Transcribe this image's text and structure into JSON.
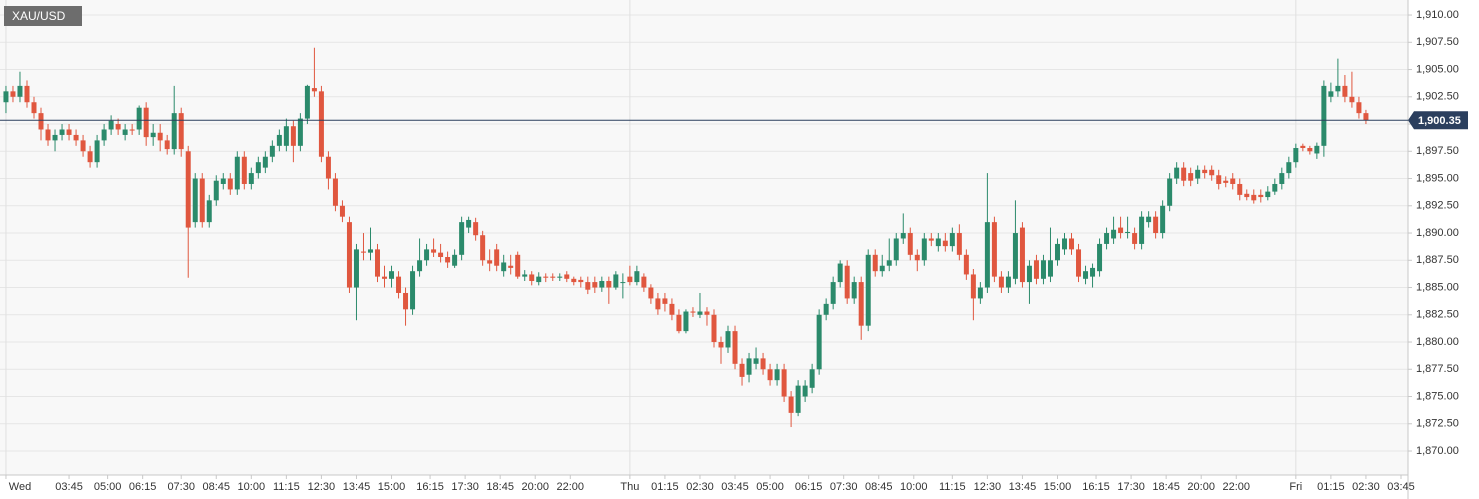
{
  "chart_data": {
    "type": "candlestick",
    "title": "XAU/USD",
    "up_color": "#2b8a6b",
    "down_color": "#e0573f",
    "grid": true,
    "last_price": {
      "value": 1900.35,
      "label": "1,900.35"
    },
    "last_price_color": "#2b3f5e",
    "xlim": [
      -0.85,
      200
    ],
    "xticks": [
      {
        "value": 0,
        "label": "Wed"
      },
      {
        "value": 9,
        "label": "03:45"
      },
      {
        "value": 14.5,
        "label": "05:00"
      },
      {
        "value": 19.5,
        "label": "06:15"
      },
      {
        "value": 25,
        "label": "07:30"
      },
      {
        "value": 30,
        "label": "08:45"
      },
      {
        "value": 35,
        "label": "10:00"
      },
      {
        "value": 40,
        "label": "11:15"
      },
      {
        "value": 45,
        "label": "12:30"
      },
      {
        "value": 50,
        "label": "13:45"
      },
      {
        "value": 55,
        "label": "15:00"
      },
      {
        "value": 60.5,
        "label": "16:15"
      },
      {
        "value": 65.5,
        "label": "17:30"
      },
      {
        "value": 70.5,
        "label": "18:45"
      },
      {
        "value": 75.5,
        "label": "20:00"
      },
      {
        "value": 80.5,
        "label": "22:00"
      },
      {
        "value": 89,
        "label": "Thu"
      },
      {
        "value": 94,
        "label": "01:15"
      },
      {
        "value": 99,
        "label": "02:30"
      },
      {
        "value": 104,
        "label": "03:45"
      },
      {
        "value": 109,
        "label": "05:00"
      },
      {
        "value": 114.5,
        "label": "06:15"
      },
      {
        "value": 119.5,
        "label": "07:30"
      },
      {
        "value": 124.5,
        "label": "08:45"
      },
      {
        "value": 129.5,
        "label": "10:00"
      },
      {
        "value": 135,
        "label": "11:15"
      },
      {
        "value": 140,
        "label": "12:30"
      },
      {
        "value": 145,
        "label": "13:45"
      },
      {
        "value": 150,
        "label": "15:00"
      },
      {
        "value": 155.5,
        "label": "16:15"
      },
      {
        "value": 160.5,
        "label": "17:30"
      },
      {
        "value": 165.5,
        "label": "18:45"
      },
      {
        "value": 170.5,
        "label": "20:00"
      },
      {
        "value": 175.5,
        "label": "22:00"
      },
      {
        "value": 184,
        "label": "Fri"
      },
      {
        "value": 189,
        "label": "01:15"
      },
      {
        "value": 194,
        "label": "02:30"
      },
      {
        "value": 199,
        "label": "03:45"
      }
    ],
    "ylim": [
      1867.8,
      1911.38
    ],
    "yticks": [
      {
        "value": 1870,
        "label": "1,870.00"
      },
      {
        "value": 1872.5,
        "label": "1,872.50"
      },
      {
        "value": 1875,
        "label": "1,875.00"
      },
      {
        "value": 1877.5,
        "label": "1,877.50"
      },
      {
        "value": 1880,
        "label": "1,880.00"
      },
      {
        "value": 1882.5,
        "label": "1,882.50"
      },
      {
        "value": 1885,
        "label": "1,885.00"
      },
      {
        "value": 1887.5,
        "label": "1,887.50"
      },
      {
        "value": 1890,
        "label": "1,890.00"
      },
      {
        "value": 1892.5,
        "label": "1,892.50"
      },
      {
        "value": 1895,
        "label": "1,895.00"
      },
      {
        "value": 1897.5,
        "label": "1,897.50"
      },
      {
        "value": 1900,
        "label": "1,900.00"
      },
      {
        "value": 1902.5,
        "label": "1,902.50"
      },
      {
        "value": 1905,
        "label": "1,905.00"
      },
      {
        "value": 1907.5,
        "label": "1,907.50"
      },
      {
        "value": 1910,
        "label": "1,910.00"
      }
    ],
    "open": [
      1902,
      1903,
      1902.5,
      1903.5,
      1902,
      1901,
      1899.5,
      1898.5,
      1899,
      1899.5,
      1899,
      1898.5,
      1897.5,
      1896.5,
      1898.5,
      1899.5,
      1900,
      1899,
      1899.5,
      1899.5,
      1901.5,
      1898.8,
      1899.2,
      1898.5,
      1897.7,
      1901,
      1897.5,
      1891,
      1895,
      1891,
      1893,
      1894.5,
      1895,
      1894,
      1897,
      1894.5,
      1895.5,
      1896,
      1897,
      1898,
      1898,
      1899.8,
      1898,
      1900.5,
      1903.3,
      1903,
      1897,
      1895,
      1892.5,
      1891,
      1885,
      1888.3,
      1888.2,
      1888.5,
      1886,
      1885.8,
      1886,
      1884.5,
      1883,
      1886.5,
      1887.5,
      1888.5,
      1888.2,
      1887.8,
      1887,
      1888,
      1890.5,
      1891,
      1889.8,
      1887.5,
      1888.5,
      1886.5,
      1887,
      1888,
      1886,
      1886.2,
      1885.5,
      1886,
      1886,
      1885.9,
      1886.2,
      1885.8,
      1885.7,
      1885.5,
      1885.5,
      1885,
      1885.6,
      1885,
      1885.5,
      1886,
      1885.5,
      1886,
      1885,
      1884,
      1884,
      1883.5,
      1882.5,
      1881,
      1882.8,
      1882.5,
      1882.8,
      1882.5,
      1880,
      1879.5,
      1881,
      1878,
      1877,
      1878,
      1878.5,
      1877.5,
      1876.5,
      1877.5,
      1875,
      1873.5,
      1875,
      1875.8,
      1877.5,
      1882.5,
      1883.5,
      1885.5,
      1887,
      1884,
      1885.5,
      1881.5,
      1888,
      1886.5,
      1887,
      1887.5,
      1889.5,
      1890,
      1888,
      1887.5,
      1889.5,
      1888.8,
      1889.3,
      1888.8,
      1890,
      1888,
      1886.2,
      1884,
      1885,
      1891,
      1886,
      1885,
      1885.8,
      1890.5,
      1885.5,
      1887.5,
      1885.8,
      1886,
      1887.5,
      1888.5,
      1889.5,
      1888.5,
      1885.8,
      1886,
      1886.5,
      1889,
      1889.5,
      1890.5,
      1890,
      1890,
      1889,
      1891,
      1891.5,
      1890,
      1892.5,
      1895,
      1896,
      1895.5,
      1895,
      1895.8,
      1895.8,
      1895.3,
      1894.8,
      1895,
      1894.5,
      1893.6,
      1893.5,
      1893.5,
      1893.3,
      1893.8,
      1894.5,
      1895.5,
      1896.5,
      1898,
      1897.8,
      1897.3,
      1898,
      1902.5,
      1903,
      1903.5,
      1902.5,
      1902,
      1901
    ],
    "high": [
      1903.5,
      1903.5,
      1904.8,
      1904,
      1902.5,
      1901.5,
      1900,
      1899.5,
      1900,
      1900,
      1899.5,
      1899,
      1898,
      1899,
      1900,
      1900.8,
      1900.5,
      1900,
      1900,
      1901.7,
      1902,
      1900,
      1900,
      1899,
      1903.5,
      1901.5,
      1898,
      1895.5,
      1895.5,
      1893.5,
      1895.3,
      1895.5,
      1895.5,
      1897.5,
      1897.5,
      1896,
      1897,
      1897.5,
      1898.5,
      1899.5,
      1900.5,
      1900.3,
      1901,
      1903.6,
      1907,
      1903.5,
      1897.5,
      1895.5,
      1893,
      1891.5,
      1889,
      1890,
      1890.5,
      1889,
      1887,
      1887,
      1886.5,
      1885,
      1887,
      1889.5,
      1889,
      1889.5,
      1889,
      1888.3,
      1888.5,
      1891.5,
      1891.5,
      1891.4,
      1890.2,
      1888.5,
      1889,
      1888,
      1888,
      1888.3,
      1886.6,
      1886.5,
      1886.4,
      1886.3,
      1886.3,
      1886.3,
      1886.5,
      1886,
      1886,
      1886,
      1886,
      1886,
      1886,
      1886.5,
      1886.3,
      1887,
      1887,
      1886.3,
      1885.3,
      1884.5,
      1884.5,
      1884,
      1883,
      1883,
      1883.2,
      1884.5,
      1883.2,
      1883,
      1880.5,
      1881.5,
      1881.5,
      1878.5,
      1879,
      1879.5,
      1879,
      1878,
      1878,
      1878,
      1875.5,
      1876.5,
      1876.5,
      1878,
      1883,
      1884,
      1886,
      1887.5,
      1887.5,
      1886,
      1886,
      1888.5,
      1888.5,
      1888,
      1889.5,
      1890,
      1891.8,
      1890.5,
      1888.5,
      1890,
      1890,
      1890,
      1890,
      1890.5,
      1890.8,
      1888.5,
      1886.7,
      1885.5,
      1895.5,
      1891.5,
      1886.5,
      1886.5,
      1893,
      1891,
      1887.5,
      1888,
      1888,
      1890.5,
      1889.5,
      1890,
      1890,
      1889,
      1887,
      1887.2,
      1889.5,
      1890.5,
      1891.5,
      1891.5,
      1891.5,
      1890.5,
      1892,
      1892,
      1892,
      1893,
      1895.5,
      1896.5,
      1896.5,
      1896,
      1896.2,
      1896.2,
      1896.2,
      1895.8,
      1895.2,
      1895.5,
      1895,
      1894,
      1894,
      1894,
      1894.3,
      1895,
      1896,
      1897,
      1898.2,
      1898.2,
      1898,
      1898.3,
      1904,
      1903.8,
      1906,
      1904.5,
      1904.8,
      1902.5,
      1901.3
    ],
    "low": [
      1901,
      1902,
      1902,
      1901.5,
      1900.5,
      1898.5,
      1898,
      1897.5,
      1898.5,
      1898.5,
      1898,
      1897,
      1896,
      1896,
      1898,
      1899,
      1899,
      1898.5,
      1899,
      1899,
      1898,
      1898,
      1897.5,
      1897.2,
      1897.2,
      1897,
      1885.9,
      1890.5,
      1890.5,
      1890.5,
      1892.5,
      1894,
      1893.5,
      1893.5,
      1894,
      1894,
      1895,
      1895.5,
      1896.5,
      1897.5,
      1897.5,
      1896.5,
      1897.5,
      1900,
      1902.5,
      1896.5,
      1894,
      1892,
      1891,
      1884.5,
      1882,
      1887.5,
      1887.5,
      1885.5,
      1885,
      1885,
      1884,
      1881.5,
      1882.5,
      1886,
      1887,
      1887.8,
      1887.3,
      1886.8,
      1886.8,
      1887.5,
      1890,
      1889.3,
      1887,
      1886.5,
      1886.5,
      1886,
      1886.2,
      1885.8,
      1885.6,
      1885.2,
      1885.2,
      1885.5,
      1885.6,
      1885.6,
      1885.5,
      1885.2,
      1885,
      1884.4,
      1884.5,
      1884.6,
      1883.5,
      1884.8,
      1884,
      1885.2,
      1885.2,
      1884.6,
      1883.5,
      1882.5,
      1882.8,
      1882,
      1880.8,
      1880.8,
      1882.3,
      1882.2,
      1881.5,
      1879.5,
      1878,
      1879,
      1877.5,
      1876,
      1876.3,
      1877.5,
      1877,
      1876,
      1876,
      1874.5,
      1872.2,
      1873.2,
      1874.5,
      1875.3,
      1877,
      1882,
      1883,
      1885,
      1883.5,
      1883.5,
      1880.2,
      1881,
      1886,
      1886,
      1886.5,
      1887,
      1889,
      1887.5,
      1886.5,
      1887,
      1888.8,
      1888.3,
      1888.3,
      1888.3,
      1887.5,
      1885.7,
      1882,
      1883.5,
      1884.5,
      1885.5,
      1884.5,
      1884.5,
      1885.3,
      1885,
      1883.5,
      1885.3,
      1885.3,
      1885.5,
      1887,
      1888,
      1888,
      1885.5,
      1885.3,
      1885,
      1886,
      1888.5,
      1889,
      1889.5,
      1889.5,
      1888.5,
      1888.5,
      1890.5,
      1889.5,
      1889.5,
      1892,
      1894.5,
      1894.3,
      1894.3,
      1894.5,
      1895,
      1894.8,
      1894,
      1894.2,
      1894,
      1893,
      1893,
      1892.7,
      1892.8,
      1893,
      1893.5,
      1894,
      1895,
      1896,
      1897.5,
      1897.2,
      1896.8,
      1897,
      1902,
      1902.5,
      1902,
      1901.5,
      1900.5,
      1900
    ],
    "close": [
      1903,
      1902.5,
      1903.5,
      1902,
      1901,
      1899.5,
      1898.5,
      1899,
      1899.5,
      1899,
      1898.5,
      1897.5,
      1896.5,
      1898.5,
      1899.5,
      1900.3,
      1899.5,
      1899.5,
      1899.4,
      1901.5,
      1898.8,
      1899.2,
      1898.5,
      1897.7,
      1901,
      1897.7,
      1890.5,
      1895,
      1891,
      1893,
      1894.8,
      1895,
      1894,
      1897,
      1894.5,
      1895.5,
      1896.5,
      1897,
      1898,
      1899,
      1899.8,
      1898,
      1900.5,
      1903.5,
      1903,
      1897,
      1895,
      1892.5,
      1891.5,
      1885,
      1888.5,
      1888.2,
      1888.5,
      1886,
      1885.8,
      1886.5,
      1884.5,
      1883,
      1886.5,
      1887.5,
      1888.5,
      1888.2,
      1887.8,
      1887.3,
      1888,
      1891,
      1891.2,
      1889.8,
      1887.5,
      1887.2,
      1887,
      1887.3,
      1886.8,
      1886,
      1886.2,
      1885.6,
      1886,
      1885.9,
      1885.9,
      1886,
      1885.8,
      1885.5,
      1885.5,
      1884.8,
      1885,
      1885.6,
      1885,
      1886.2,
      1885.5,
      1885.5,
      1886.5,
      1885,
      1884,
      1883,
      1883.5,
      1882.5,
      1881,
      1882.8,
      1882.7,
      1882.8,
      1882.5,
      1880,
      1879.5,
      1881,
      1878,
      1876.8,
      1878.5,
      1878.5,
      1877.5,
      1876.5,
      1877.5,
      1875,
      1873.5,
      1876,
      1876,
      1877.5,
      1882.5,
      1883.5,
      1885.5,
      1887.2,
      1884,
      1885.5,
      1881.5,
      1888,
      1886.5,
      1887,
      1887.5,
      1889.5,
      1890,
      1888,
      1887.5,
      1889.5,
      1889.3,
      1889.5,
      1888.8,
      1890,
      1888,
      1886.2,
      1884,
      1885,
      1891,
      1886,
      1885,
      1886,
      1890,
      1885.5,
      1887,
      1885.8,
      1887.5,
      1887.5,
      1889,
      1889.5,
      1888.5,
      1886,
      1886.5,
      1886.8,
      1889,
      1890,
      1890.3,
      1890,
      1890.1,
      1889,
      1891.5,
      1891.5,
      1890,
      1892.5,
      1895,
      1896,
      1894.8,
      1894.8,
      1895.8,
      1895.5,
      1895.3,
      1894.5,
      1894.6,
      1894.5,
      1893.5,
      1893.3,
      1893,
      1893.3,
      1893.8,
      1894.5,
      1895.5,
      1896.5,
      1897.8,
      1897.8,
      1897.5,
      1898,
      1903.5,
      1903,
      1903.5,
      1902.5,
      1902,
      1901,
      1900.35
    ]
  }
}
